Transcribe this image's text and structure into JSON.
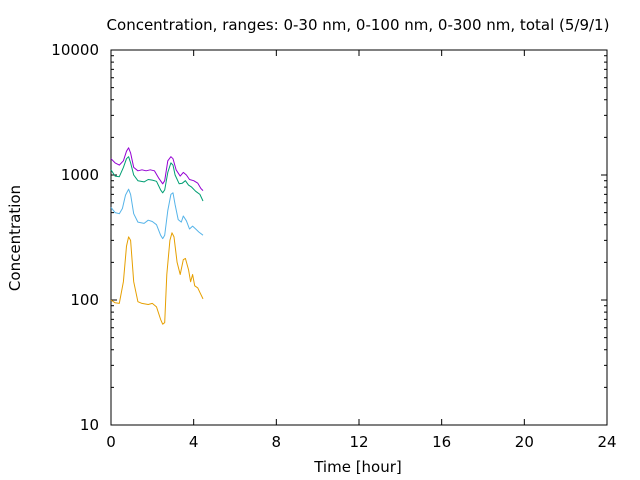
{
  "chart_data": {
    "type": "line",
    "title": "Concentration, ranges: 0-30 nm, 0-100 nm, 0-300 nm, total (5/9/1)",
    "xlabel": "Time [hour]",
    "ylabel": "Concentration",
    "xlim": [
      0,
      24
    ],
    "ylim": [
      10,
      10000
    ],
    "yscale": "log",
    "xticks": [
      0,
      4,
      8,
      12,
      16,
      20,
      24
    ],
    "xtick_labels": [
      "0",
      "4",
      "8",
      "12",
      "16",
      "20",
      "24"
    ],
    "yticks": [
      10,
      100,
      1000,
      10000
    ],
    "ytick_labels": [
      "10",
      "100",
      "1000",
      "10000"
    ],
    "grid": false,
    "series": [
      {
        "color": "#e69f00",
        "points": [
          [
            0.0,
            100
          ],
          [
            0.2,
            95
          ],
          [
            0.4,
            94
          ],
          [
            0.6,
            140
          ],
          [
            0.75,
            270
          ],
          [
            0.85,
            320
          ],
          [
            0.95,
            300
          ],
          [
            1.1,
            140
          ],
          [
            1.3,
            97
          ],
          [
            1.5,
            94
          ],
          [
            1.8,
            92
          ],
          [
            2.0,
            94
          ],
          [
            2.2,
            88
          ],
          [
            2.4,
            70
          ],
          [
            2.5,
            64
          ],
          [
            2.6,
            66
          ],
          [
            2.7,
            160
          ],
          [
            2.85,
            300
          ],
          [
            2.95,
            345
          ],
          [
            3.05,
            320
          ],
          [
            3.2,
            200
          ],
          [
            3.35,
            160
          ],
          [
            3.5,
            210
          ],
          [
            3.6,
            215
          ],
          [
            3.75,
            175
          ],
          [
            3.85,
            140
          ],
          [
            3.95,
            160
          ],
          [
            4.05,
            130
          ],
          [
            4.2,
            125
          ],
          [
            4.3,
            115
          ],
          [
            4.45,
            102
          ]
        ]
      },
      {
        "color": "#56b4e9",
        "points": [
          [
            0.0,
            550
          ],
          [
            0.2,
            500
          ],
          [
            0.4,
            490
          ],
          [
            0.55,
            540
          ],
          [
            0.7,
            690
          ],
          [
            0.85,
            770
          ],
          [
            0.95,
            700
          ],
          [
            1.1,
            490
          ],
          [
            1.3,
            420
          ],
          [
            1.6,
            410
          ],
          [
            1.8,
            435
          ],
          [
            2.0,
            425
          ],
          [
            2.2,
            400
          ],
          [
            2.4,
            330
          ],
          [
            2.5,
            310
          ],
          [
            2.6,
            330
          ],
          [
            2.75,
            520
          ],
          [
            2.9,
            700
          ],
          [
            3.0,
            720
          ],
          [
            3.1,
            580
          ],
          [
            3.25,
            440
          ],
          [
            3.4,
            420
          ],
          [
            3.5,
            470
          ],
          [
            3.65,
            430
          ],
          [
            3.8,
            370
          ],
          [
            3.95,
            390
          ],
          [
            4.1,
            370
          ],
          [
            4.25,
            350
          ],
          [
            4.45,
            330
          ]
        ]
      },
      {
        "color": "#009e73",
        "points": [
          [
            0.0,
            1100
          ],
          [
            0.2,
            980
          ],
          [
            0.4,
            970
          ],
          [
            0.6,
            1150
          ],
          [
            0.75,
            1350
          ],
          [
            0.85,
            1400
          ],
          [
            0.95,
            1250
          ],
          [
            1.1,
            1000
          ],
          [
            1.3,
            900
          ],
          [
            1.6,
            880
          ],
          [
            1.8,
            920
          ],
          [
            2.0,
            910
          ],
          [
            2.2,
            890
          ],
          [
            2.4,
            760
          ],
          [
            2.5,
            720
          ],
          [
            2.6,
            760
          ],
          [
            2.75,
            1050
          ],
          [
            2.9,
            1250
          ],
          [
            3.0,
            1200
          ],
          [
            3.1,
            1000
          ],
          [
            3.3,
            850
          ],
          [
            3.45,
            860
          ],
          [
            3.6,
            900
          ],
          [
            3.75,
            830
          ],
          [
            3.9,
            800
          ],
          [
            4.1,
            740
          ],
          [
            4.3,
            700
          ],
          [
            4.45,
            620
          ]
        ]
      },
      {
        "color": "#9400d3",
        "points": [
          [
            0.0,
            1350
          ],
          [
            0.2,
            1250
          ],
          [
            0.4,
            1200
          ],
          [
            0.6,
            1300
          ],
          [
            0.75,
            1550
          ],
          [
            0.85,
            1650
          ],
          [
            0.95,
            1500
          ],
          [
            1.1,
            1150
          ],
          [
            1.3,
            1080
          ],
          [
            1.5,
            1100
          ],
          [
            1.7,
            1080
          ],
          [
            1.9,
            1100
          ],
          [
            2.1,
            1080
          ],
          [
            2.3,
            950
          ],
          [
            2.5,
            850
          ],
          [
            2.6,
            900
          ],
          [
            2.75,
            1300
          ],
          [
            2.9,
            1400
          ],
          [
            3.0,
            1350
          ],
          [
            3.15,
            1100
          ],
          [
            3.35,
            980
          ],
          [
            3.5,
            1050
          ],
          [
            3.65,
            1000
          ],
          [
            3.8,
            920
          ],
          [
            4.0,
            900
          ],
          [
            4.2,
            860
          ],
          [
            4.35,
            780
          ],
          [
            4.45,
            750
          ]
        ]
      }
    ]
  }
}
